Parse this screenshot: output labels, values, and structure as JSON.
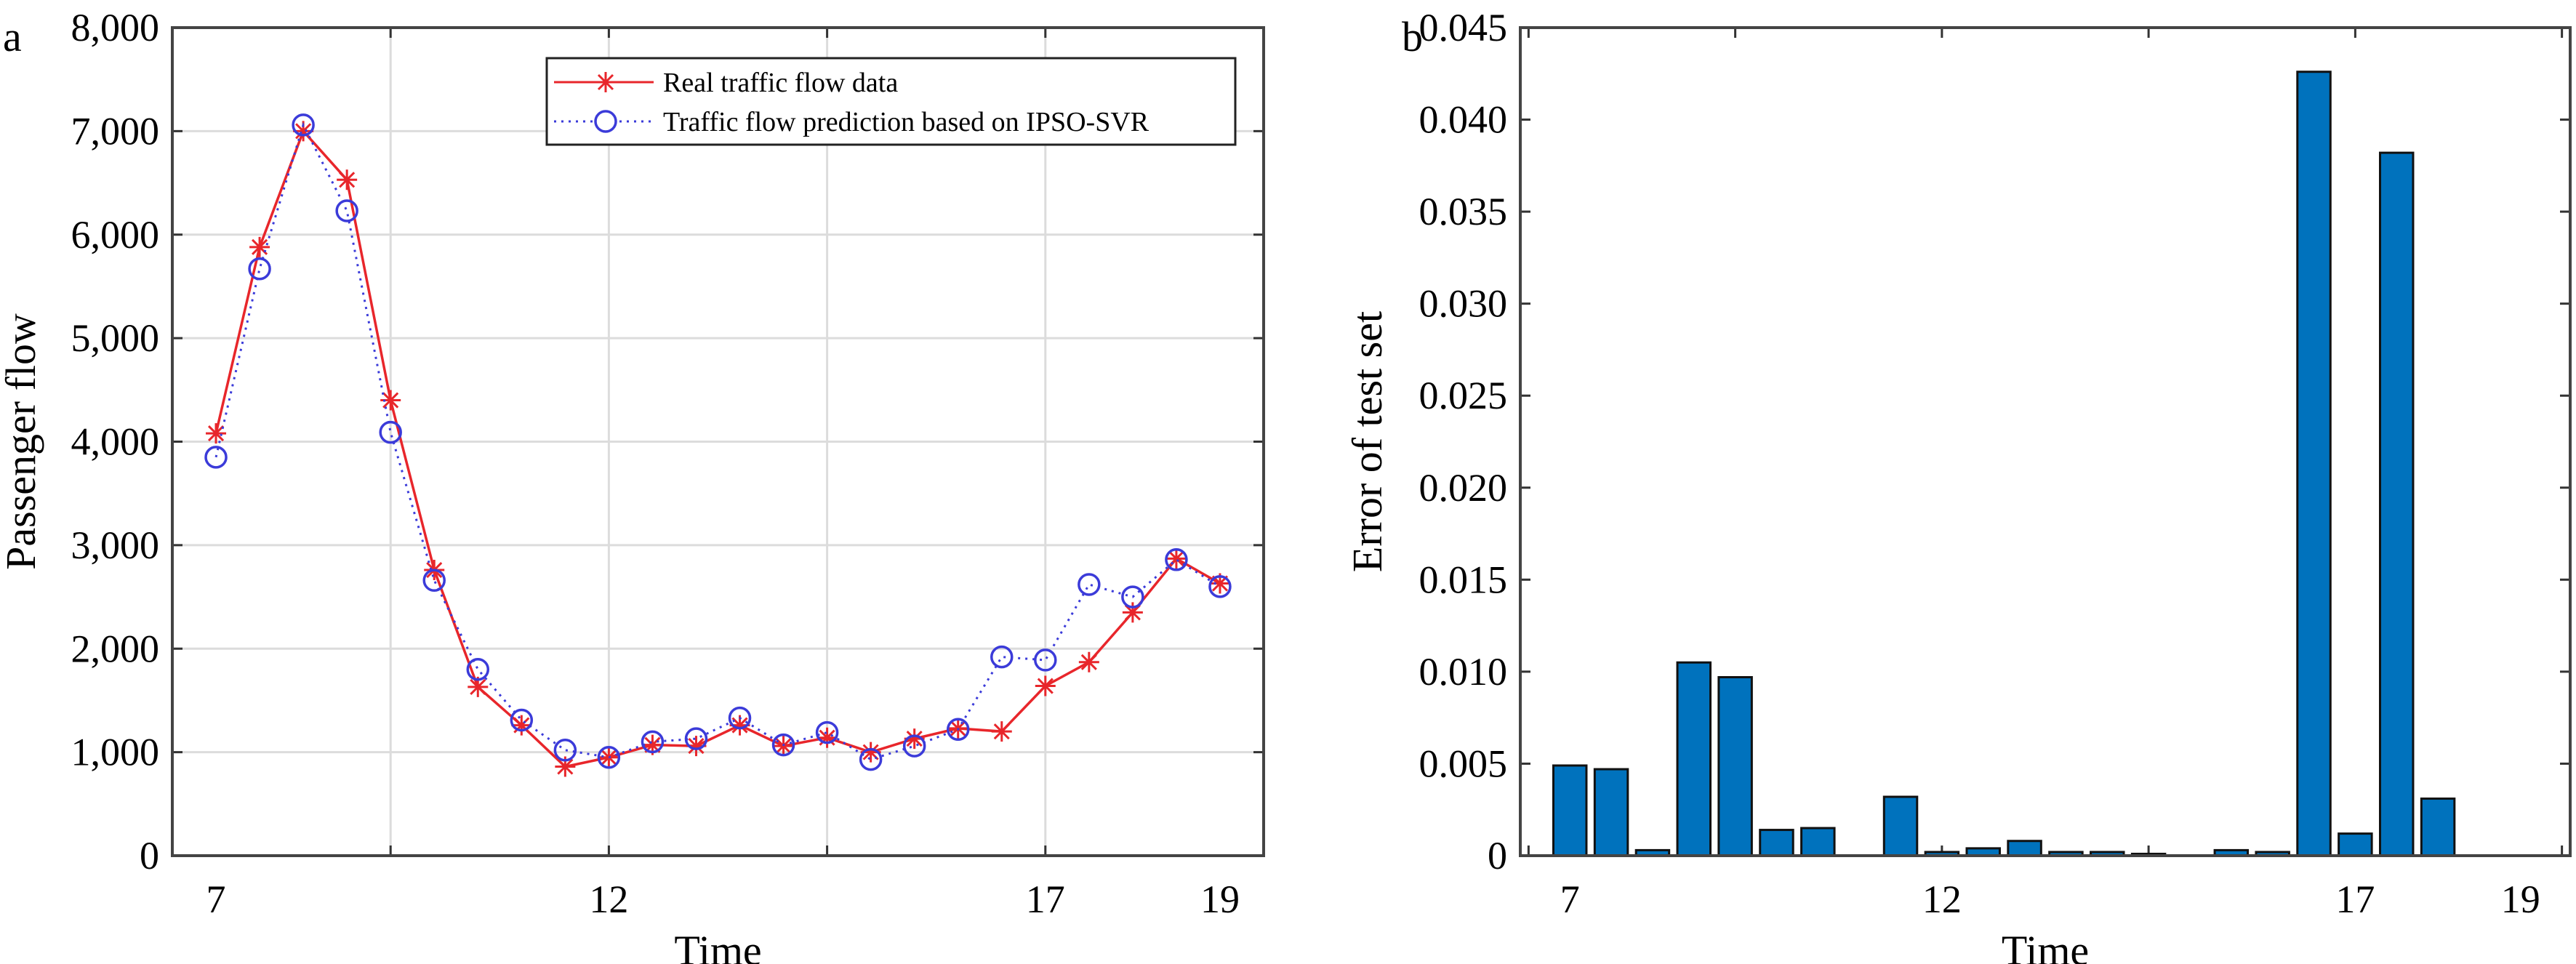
{
  "chart_data": [
    {
      "panel_label": "a",
      "type": "line",
      "xlabel": "Time",
      "ylabel": "Passenger flow",
      "x": [
        1,
        2,
        3,
        4,
        5,
        6,
        7,
        8,
        9,
        10,
        11,
        12,
        13,
        14,
        15,
        16,
        17,
        18,
        19,
        20,
        21,
        22,
        23,
        24
      ],
      "xlim": [
        0,
        25
      ],
      "xtick_marks": [
        5,
        10,
        15,
        20
      ],
      "xtick_labels": [
        {
          "pos": 1,
          "label": "7"
        },
        {
          "pos": 10,
          "label": "12"
        },
        {
          "pos": 20,
          "label": "17"
        },
        {
          "pos": 24,
          "label": "19"
        }
      ],
      "ylim": [
        0,
        8000
      ],
      "yticks": [
        0,
        1000,
        2000,
        3000,
        4000,
        5000,
        6000,
        7000,
        8000
      ],
      "ytick_labels": [
        "0",
        "1,000",
        "2,000",
        "3,000",
        "4,000",
        "5,000",
        "6,000",
        "7,000",
        "8,000"
      ],
      "grid": true,
      "legend_position": "top-right",
      "series": [
        {
          "name": "Real traffic flow data",
          "color": "#e8262b",
          "marker": "asterisk",
          "line": "solid",
          "values": [
            4080,
            5880,
            7000,
            6530,
            4400,
            2760,
            1630,
            1260,
            860,
            950,
            1070,
            1060,
            1260,
            1060,
            1140,
            1000,
            1130,
            1230,
            1200,
            1640,
            1870,
            2350,
            2870,
            2630
          ]
        },
        {
          "name": "Traffic flow prediction based on IPSO-SVR",
          "color": "#3b3bd9",
          "marker": "circle",
          "line": "dotted",
          "values": [
            3850,
            5670,
            7060,
            6230,
            4090,
            2660,
            1800,
            1310,
            1020,
            950,
            1100,
            1130,
            1330,
            1070,
            1190,
            930,
            1060,
            1220,
            1920,
            1890,
            2620,
            2500,
            2860,
            2600
          ]
        }
      ]
    },
    {
      "panel_label": "b",
      "type": "bar",
      "xlabel": "Time",
      "ylabel": "Error of test set",
      "x": [
        1,
        2,
        3,
        4,
        5,
        6,
        7,
        8,
        9,
        10,
        11,
        12,
        13,
        14,
        15,
        16,
        17,
        18,
        19,
        20,
        21,
        22,
        23,
        24
      ],
      "xlim": [
        -0.2,
        25.2
      ],
      "xtick_marks": [
        0,
        5,
        10,
        15,
        20,
        25
      ],
      "xtick_labels": [
        {
          "pos": 1,
          "label": "7"
        },
        {
          "pos": 10,
          "label": "12"
        },
        {
          "pos": 20,
          "label": "17"
        },
        {
          "pos": 24,
          "label": "19"
        }
      ],
      "ylim": [
        0,
        0.045
      ],
      "yticks": [
        0,
        0.005,
        0.01,
        0.015,
        0.02,
        0.025,
        0.03,
        0.035,
        0.04,
        0.045
      ],
      "ytick_labels": [
        "0",
        "0.005",
        "0.010",
        "0.015",
        "0.020",
        "0.025",
        "0.030",
        "0.035",
        "0.040",
        "0.045"
      ],
      "grid": false,
      "bar_color": "#0072bd",
      "values": [
        0.0049,
        0.0047,
        0.0003,
        0.0105,
        0.0097,
        0.0014,
        0.0015,
        0,
        0.0032,
        0.0002,
        0.0004,
        0.0008,
        0.0002,
        0.0002,
        0.0001,
        0,
        0.0003,
        0.0002,
        0.0426,
        0.0012,
        0.0382,
        0.0031,
        0,
        0
      ]
    }
  ]
}
